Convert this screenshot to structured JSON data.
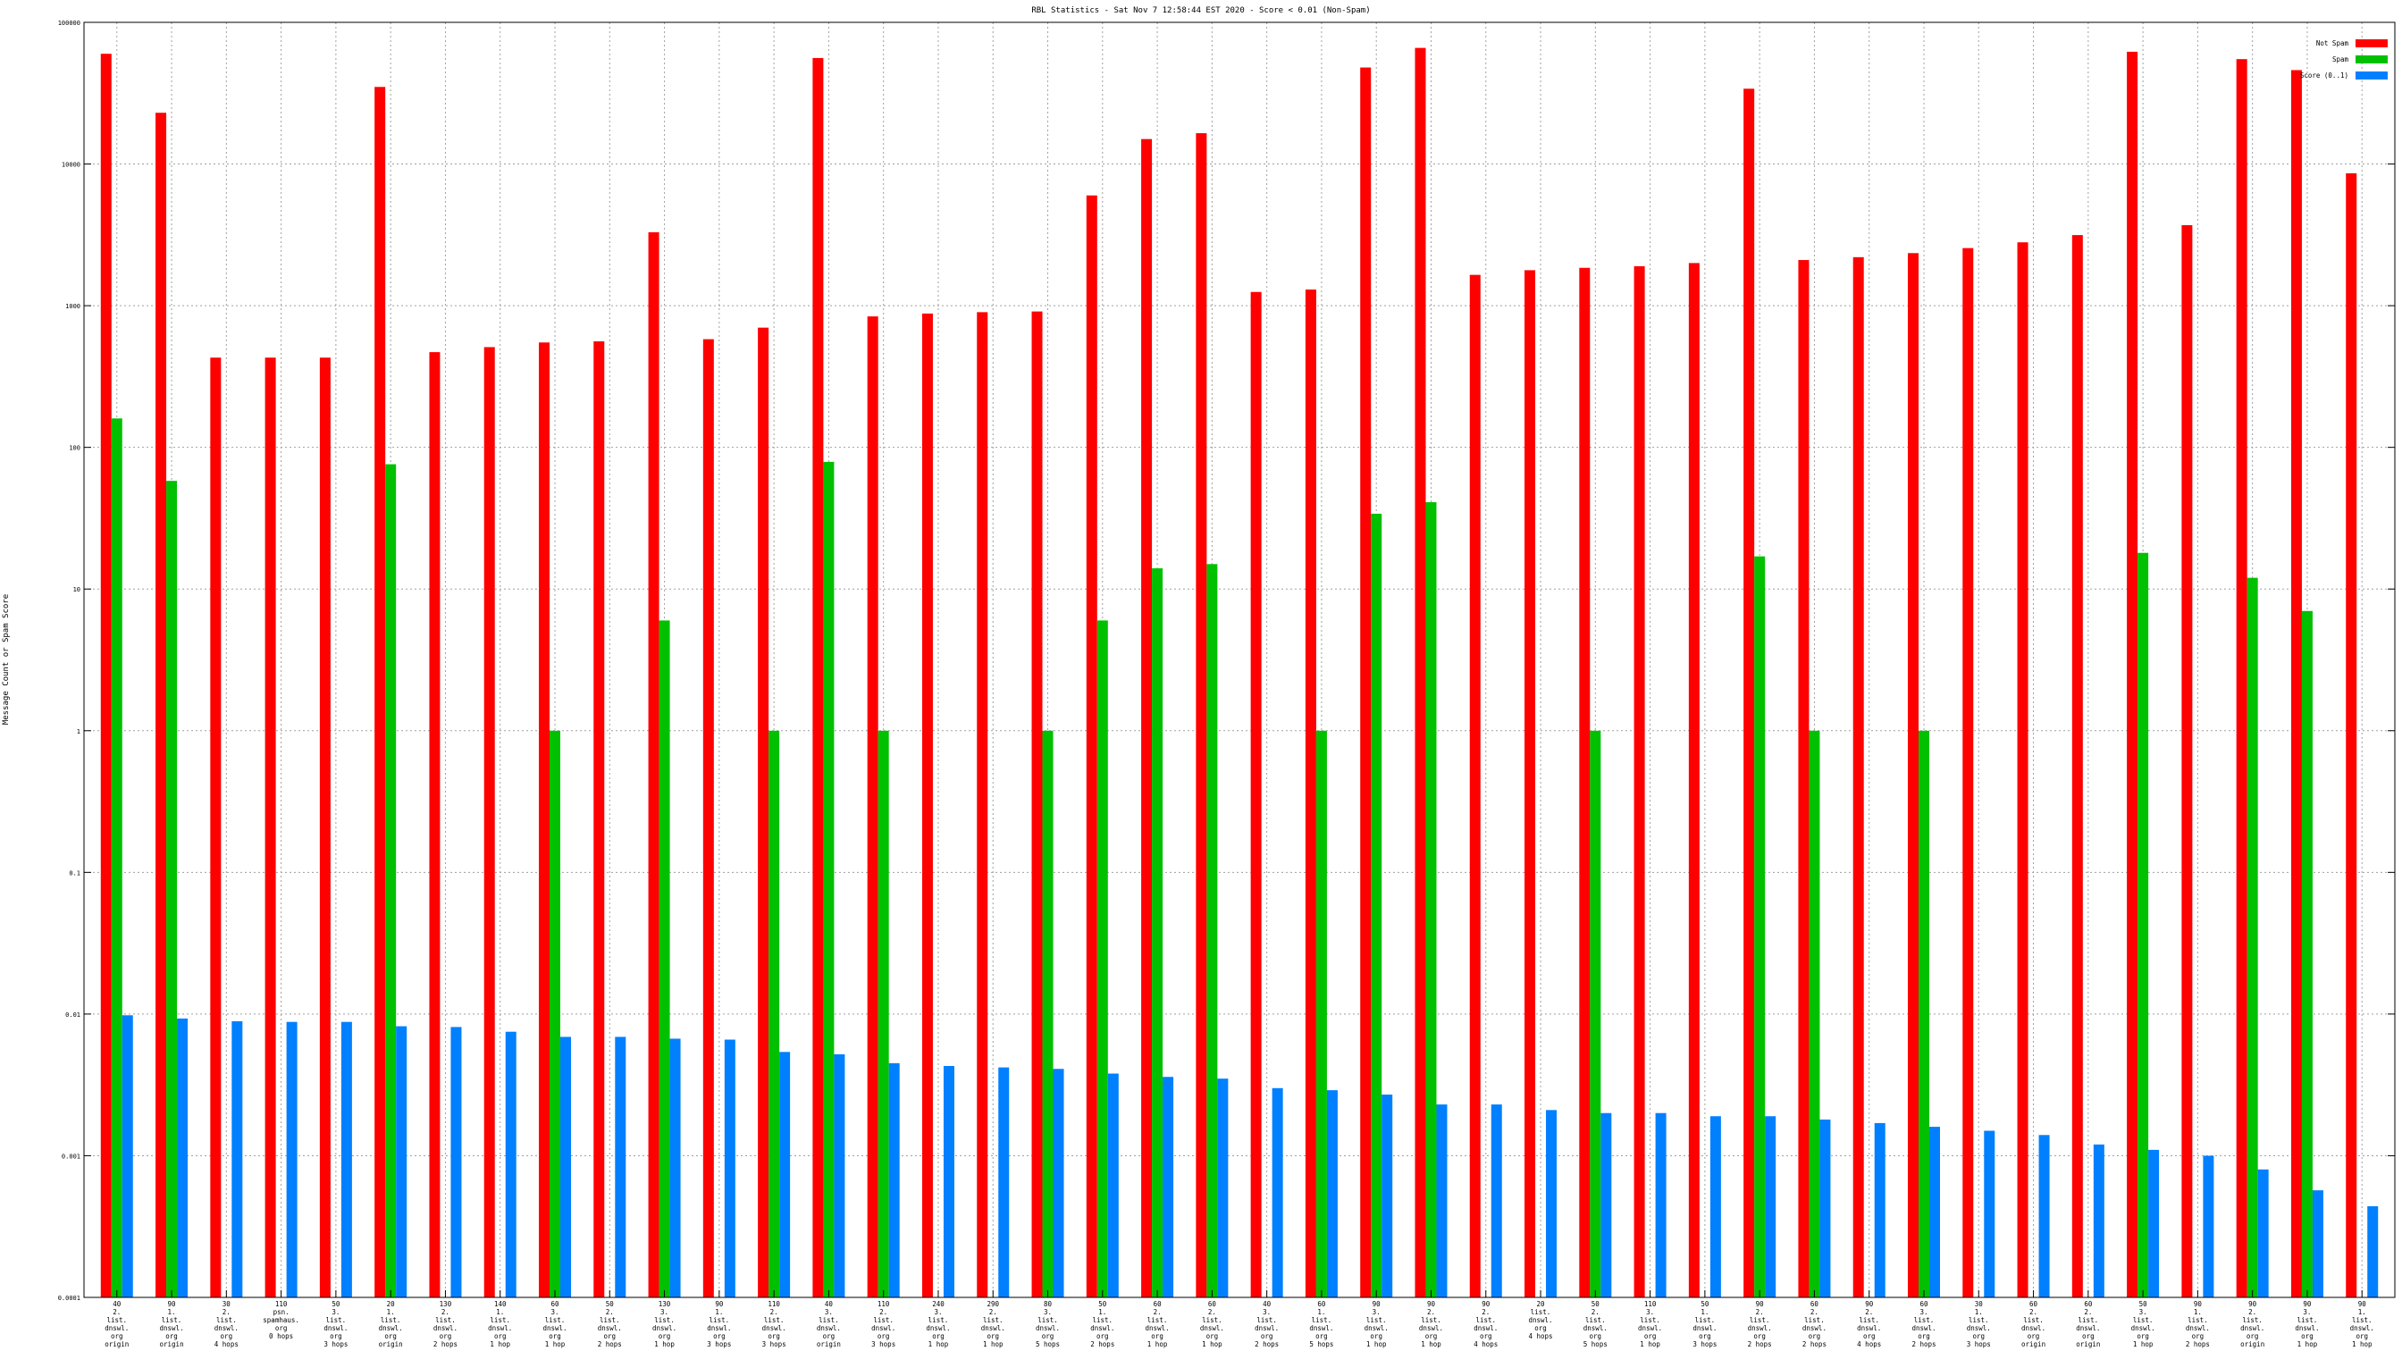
{
  "chart_data": {
    "type": "bar",
    "title": "RBL Statistics - Sat Nov  7 12:58:44 EST 2020 - Score < 0.01 (Non-Spam)",
    "xlabel": "",
    "ylabel": "Message Count or Spam Score",
    "yscale": "log",
    "ylim": [
      0.0001,
      100000
    ],
    "yticks": [
      {
        "value": 0.0001,
        "label": "0.0001"
      },
      {
        "value": 0.001,
        "label": "0.001"
      },
      {
        "value": 0.01,
        "label": "0.01"
      },
      {
        "value": 0.1,
        "label": "0.1"
      },
      {
        "value": 1,
        "label": "1"
      },
      {
        "value": 10,
        "label": "10"
      },
      {
        "value": 100,
        "label": "100"
      },
      {
        "value": 1000,
        "label": "1000"
      },
      {
        "value": 10000,
        "label": "10000"
      },
      {
        "value": 100000,
        "label": "100000"
      }
    ],
    "grid": true,
    "legend_position": "top-right",
    "categories": [
      [
        "40",
        "2.",
        "list.",
        "dnswl.",
        "org",
        "origin"
      ],
      [
        "90",
        "1.",
        "list.",
        "dnswl.",
        "org",
        "origin"
      ],
      [
        "30",
        "2.",
        "list.",
        "dnswl.",
        "org",
        "4 hops"
      ],
      [
        "110",
        "psn.",
        "spamhaus.",
        "org",
        "0 hops"
      ],
      [
        "50",
        "3.",
        "list.",
        "dnswl.",
        "org",
        "3 hops"
      ],
      [
        "20",
        "1.",
        "list.",
        "dnswl.",
        "org",
        "origin"
      ],
      [
        "130",
        "2.",
        "list.",
        "dnswl.",
        "org",
        "2 hops"
      ],
      [
        "140",
        "1.",
        "list.",
        "dnswl.",
        "org",
        "1 hop"
      ],
      [
        "60",
        "3.",
        "list.",
        "dnswl.",
        "org",
        "1 hop"
      ],
      [
        "50",
        "2.",
        "list.",
        "dnswl.",
        "org",
        "2 hops"
      ],
      [
        "130",
        "3.",
        "list.",
        "dnswl.",
        "org",
        "1 hop"
      ],
      [
        "90",
        "1.",
        "list.",
        "dnswl.",
        "org",
        "3 hops"
      ],
      [
        "110",
        "2.",
        "list.",
        "dnswl.",
        "org",
        "3 hops"
      ],
      [
        "40",
        "3.",
        "list.",
        "dnswl.",
        "org",
        "origin"
      ],
      [
        "110",
        "2.",
        "list.",
        "dnswl.",
        "org",
        "3 hops"
      ],
      [
        "240",
        "3.",
        "list.",
        "dnswl.",
        "org",
        "1 hop"
      ],
      [
        "290",
        "2.",
        "list.",
        "dnswl.",
        "org",
        "1 hop"
      ],
      [
        "80",
        "3.",
        "list.",
        "dnswl.",
        "org",
        "5 hops"
      ],
      [
        "50",
        "1.",
        "list.",
        "dnswl.",
        "org",
        "2 hops"
      ],
      [
        "60",
        "2.",
        "list.",
        "dnswl.",
        "org",
        "1 hop"
      ],
      [
        "60",
        "2.",
        "list.",
        "dnswl.",
        "org",
        "1 hop"
      ],
      [
        "40",
        "3.",
        "list.",
        "dnswl.",
        "org",
        "2 hops"
      ],
      [
        "60",
        "1.",
        "list.",
        "dnswl.",
        "org",
        "5 hops"
      ],
      [
        "90",
        "3.",
        "list.",
        "dnswl.",
        "org",
        "1 hop"
      ],
      [
        "90",
        "2.",
        "list.",
        "dnswl.",
        "org",
        "1 hop"
      ],
      [
        "90",
        "2.",
        "list.",
        "dnswl.",
        "org",
        "4 hops"
      ],
      [
        "20",
        "list.",
        "dnswl.",
        "org",
        "4 hops"
      ],
      [
        "50",
        "2.",
        "list.",
        "dnswl.",
        "org",
        "5 hops"
      ],
      [
        "110",
        "3.",
        "list.",
        "dnswl.",
        "org",
        "1 hop"
      ],
      [
        "50",
        "1.",
        "list.",
        "dnswl.",
        "org",
        "3 hops"
      ],
      [
        "90",
        "2.",
        "list.",
        "dnswl.",
        "org",
        "2 hops"
      ],
      [
        "60",
        "2.",
        "list.",
        "dnswl.",
        "org",
        "2 hops"
      ],
      [
        "90",
        "2.",
        "list.",
        "dnswl.",
        "org",
        "4 hops"
      ],
      [
        "60",
        "3.",
        "list.",
        "dnswl.",
        "org",
        "2 hops"
      ],
      [
        "30",
        "1.",
        "list.",
        "dnswl.",
        "org",
        "3 hops"
      ],
      [
        "60",
        "2.",
        "list.",
        "dnswl.",
        "org",
        "origin"
      ],
      [
        "60",
        "2.",
        "list.",
        "dnswl.",
        "org",
        "origin"
      ],
      [
        "50",
        "3.",
        "list.",
        "dnswl.",
        "org",
        "1 hop"
      ],
      [
        "90",
        "1.",
        "list.",
        "dnswl.",
        "org",
        "2 hops"
      ],
      [
        "90",
        "2.",
        "list.",
        "dnswl.",
        "org",
        "origin"
      ],
      [
        "90",
        "3.",
        "list.",
        "dnswl.",
        "org",
        "1 hop"
      ],
      [
        "90",
        "1.",
        "list.",
        "dnswl.",
        "org",
        "1 hop"
      ]
    ],
    "series": [
      {
        "name": "Not Spam",
        "color": "#ff0000",
        "values": [
          60000,
          23000,
          430,
          430,
          430,
          35000,
          470,
          510,
          550,
          560,
          3300,
          580,
          700,
          56000,
          840,
          880,
          900,
          910,
          6000,
          15000,
          16500,
          1250,
          1300,
          48000,
          66000,
          1650,
          1780,
          1850,
          1900,
          2000,
          34000,
          2100,
          2200,
          2350,
          2550,
          2800,
          3150,
          62000,
          3700,
          55000,
          46000,
          8600
        ]
      },
      {
        "name": "Spam",
        "color": "#00c000",
        "values": [
          160,
          58,
          0,
          0,
          0,
          76,
          0,
          0,
          1,
          0,
          6,
          0,
          1,
          79,
          1,
          0,
          0,
          1,
          6,
          14,
          15,
          0,
          1,
          34,
          41,
          0,
          0,
          1,
          0,
          0,
          17,
          1,
          0,
          1,
          0,
          0,
          0,
          18,
          0,
          12,
          7,
          0
        ]
      },
      {
        "name": "Score (0..1)",
        "color": "#0080ff",
        "values": [
          0.0098,
          0.0093,
          0.0089,
          0.0088,
          0.0088,
          0.0082,
          0.0081,
          0.0075,
          0.0069,
          0.0069,
          0.0067,
          0.0066,
          0.0054,
          0.0052,
          0.0045,
          0.0043,
          0.0042,
          0.0041,
          0.0038,
          0.0036,
          0.0035,
          0.003,
          0.0029,
          0.0027,
          0.0023,
          0.0023,
          0.0021,
          0.002,
          0.002,
          0.0019,
          0.0019,
          0.0018,
          0.0017,
          0.0016,
          0.0015,
          0.0014,
          0.0012,
          0.0011,
          0.001,
          0.0008,
          0.00057,
          0.00044
        ]
      }
    ]
  }
}
